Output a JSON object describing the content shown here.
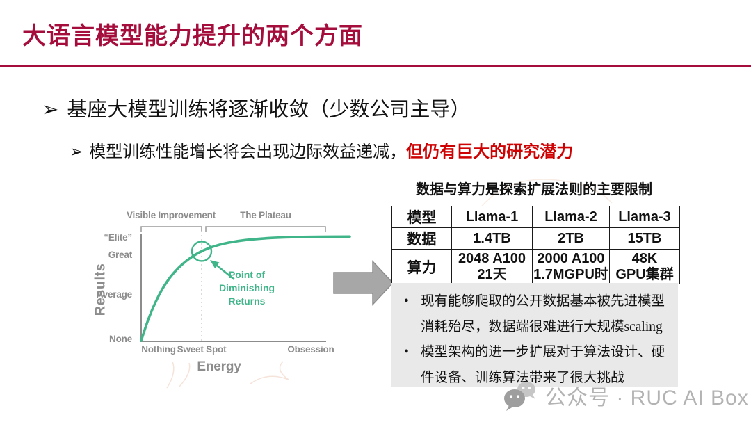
{
  "slide": {
    "title": "大语言模型能力提升的两个方面",
    "bullet_marker": "➢",
    "bullets": {
      "main": "基座大模型训练将逐渐收敛（少数公司主导）",
      "sub_plain": "模型训练性能增长将会出现边际效益递减，",
      "sub_highlight": "但仍有巨大的研究潜力"
    }
  },
  "chart_data": {
    "type": "line",
    "title": "",
    "xlabel": "Energy",
    "ylabel": "Results",
    "x_ticks": [
      "Nothing",
      "Sweet Spot",
      "Obsession"
    ],
    "y_ticks": [
      "“Elite”",
      "Great",
      "Average",
      "None"
    ],
    "phases": [
      {
        "label": "Visible Improvement",
        "x_range": [
          0,
          0.29
        ]
      },
      {
        "label": "The Plateau",
        "x_range": [
          0.31,
          0.88
        ]
      }
    ],
    "annotation": {
      "label": "Point of Diminishing Returns",
      "x": 0.29,
      "y": 0.857
    },
    "series": [
      {
        "name": "results-vs-energy",
        "color": "#41B58A",
        "x": [
          0,
          0.03,
          0.06,
          0.1,
          0.14,
          0.18,
          0.23,
          0.29,
          0.35,
          0.42,
          0.5,
          0.6,
          0.72,
          0.85,
          1.0
        ],
        "y": [
          0.0,
          0.18,
          0.33,
          0.49,
          0.61,
          0.7,
          0.785,
          0.857,
          0.905,
          0.94,
          0.965,
          0.982,
          0.992,
          0.996,
          0.998
        ]
      }
    ],
    "grid": false,
    "legend": false,
    "axis_note": "qualitative axes, no numeric scale"
  },
  "table": {
    "title": "数据与算力是探索扩展法则的主要限制",
    "headers": [
      "模型",
      "Llama-1",
      "Llama-2",
      "Llama-3"
    ],
    "rows": [
      {
        "label": "数据",
        "cells": [
          [
            "1.4TB"
          ],
          [
            "2TB"
          ],
          [
            "15TB"
          ]
        ]
      },
      {
        "label": "算力",
        "cells": [
          [
            "2048 A100",
            "21天"
          ],
          [
            "2000 A100",
            "1.7MGPU时"
          ],
          [
            "48K",
            "GPU集群"
          ]
        ]
      }
    ]
  },
  "notes": {
    "items": [
      "现有能够爬取的公开数据基本被先进模型消耗殆尽，数据端很难进行大规模scaling",
      "模型架构的进一步扩展对于算法设计、硬件设备、训练算法带来了很大挑战"
    ]
  },
  "watermark": {
    "text": "公众号 · RUC AI Box"
  },
  "colors": {
    "accent": "#A50D3C",
    "highlight_red": "#CE0202",
    "chart_green": "#41B58A",
    "chart_gray": "#8C8C8C",
    "arrow_gray": "#A7A7A7",
    "arrow_gray_edge": "#8E8E8E",
    "notes_bg": "#E9E9E9",
    "watermark_gray": "#B3B3B3"
  }
}
